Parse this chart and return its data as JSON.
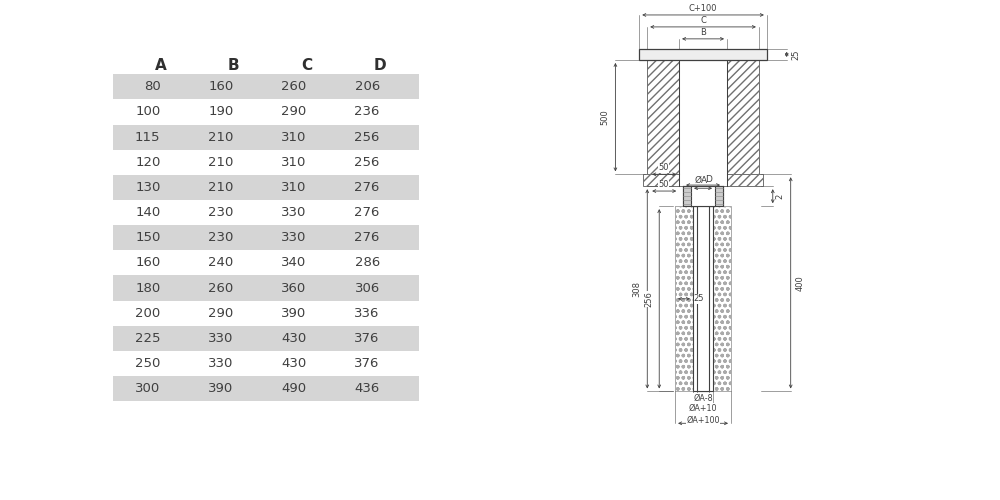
{
  "table_headers": [
    "A",
    "B",
    "C",
    "D"
  ],
  "table_rows": [
    [
      80,
      160,
      260,
      206
    ],
    [
      100,
      190,
      290,
      236
    ],
    [
      115,
      210,
      310,
      256
    ],
    [
      120,
      210,
      310,
      256
    ],
    [
      130,
      210,
      310,
      276
    ],
    [
      140,
      230,
      330,
      276
    ],
    [
      150,
      230,
      330,
      276
    ],
    [
      160,
      240,
      340,
      286
    ],
    [
      180,
      260,
      360,
      306
    ],
    [
      200,
      290,
      390,
      336
    ],
    [
      225,
      330,
      430,
      376
    ],
    [
      250,
      330,
      430,
      376
    ],
    [
      300,
      390,
      490,
      436
    ]
  ],
  "shaded_rows": [
    0,
    2,
    4,
    6,
    8,
    10,
    12
  ],
  "shaded_color": "#d5d5d5",
  "text_color": "#404040",
  "header_color": "#303030",
  "lc": "#404040",
  "hc": "#707070",
  "bg": "#ffffff"
}
